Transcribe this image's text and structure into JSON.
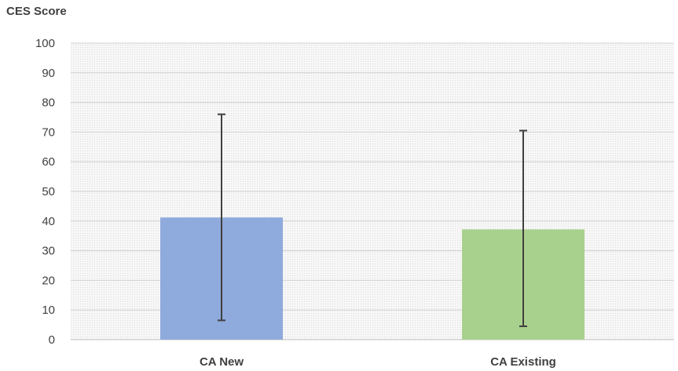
{
  "chart_data": {
    "type": "bar",
    "ylabel": "CES Score",
    "categories": [
      "CA New",
      "CA Existing"
    ],
    "values": [
      41.2,
      37.2
    ],
    "error_bars": [
      {
        "low": 6.5,
        "high": 76.0
      },
      {
        "low": 4.5,
        "high": 70.5
      }
    ],
    "colors": [
      "#8faadc",
      "#a9d18e"
    ],
    "ylim": [
      0,
      100
    ],
    "yticks": [
      0,
      10,
      20,
      30,
      40,
      50,
      60,
      70,
      80,
      90,
      100
    ],
    "grid": true,
    "plot_background": "#f2f2f2"
  }
}
